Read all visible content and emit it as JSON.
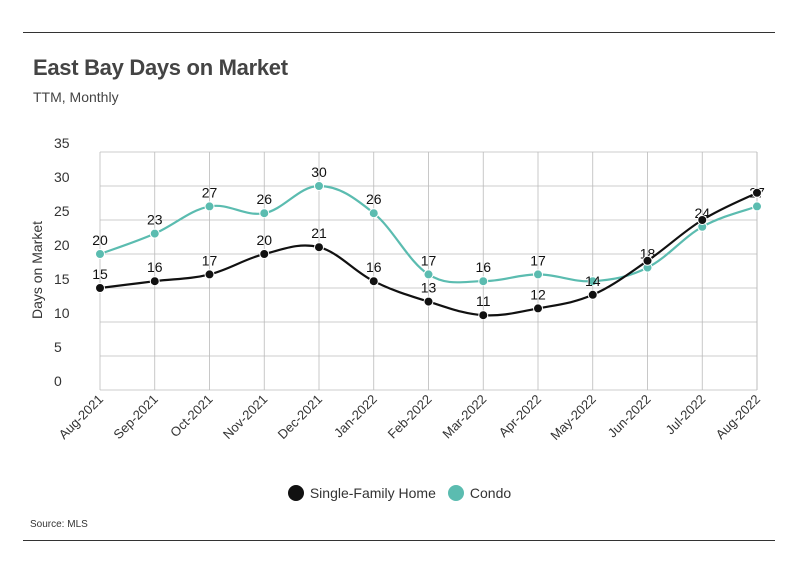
{
  "title": "East Bay Days on Market",
  "subtitle": "TTM, Monthly",
  "source": "Source:  MLS",
  "colors": {
    "single_family": "#111111",
    "condo": "#5bbcb0",
    "grid": "#bbbbbb"
  },
  "chart_data": {
    "type": "line",
    "title": "East Bay Days on Market",
    "subtitle": "TTM, Monthly",
    "xlabel": "",
    "ylabel": "Days on Market",
    "ylim": [
      0,
      35
    ],
    "yticks": [
      0,
      5,
      10,
      15,
      20,
      25,
      30,
      35
    ],
    "grid": true,
    "legend_position": "bottom",
    "categories": [
      "Aug-2021",
      "Sep-2021",
      "Oct-2021",
      "Nov-2021",
      "Dec-2021",
      "Jan-2022",
      "Feb-2022",
      "Mar-2022",
      "Apr-2022",
      "May-2022",
      "Jun-2022",
      "Jul-2022",
      "Aug-2022"
    ],
    "series": [
      {
        "name": "Single-Family Home",
        "values": [
          15,
          16,
          17,
          20,
          21,
          16,
          13,
          11,
          12,
          14,
          19,
          25,
          29
        ],
        "labels": [
          "15",
          "16",
          "17",
          "20",
          "21",
          "16",
          "13",
          "11",
          "12",
          "14",
          "",
          "",
          ""
        ]
      },
      {
        "name": "Condo",
        "values": [
          20,
          23,
          27,
          26,
          30,
          26,
          17,
          16,
          17,
          16,
          18,
          24,
          27
        ],
        "labels": [
          "20",
          "23",
          "27",
          "26",
          "30",
          "26",
          "17",
          "16",
          "17",
          "",
          "18",
          "24",
          "27"
        ]
      }
    ]
  }
}
